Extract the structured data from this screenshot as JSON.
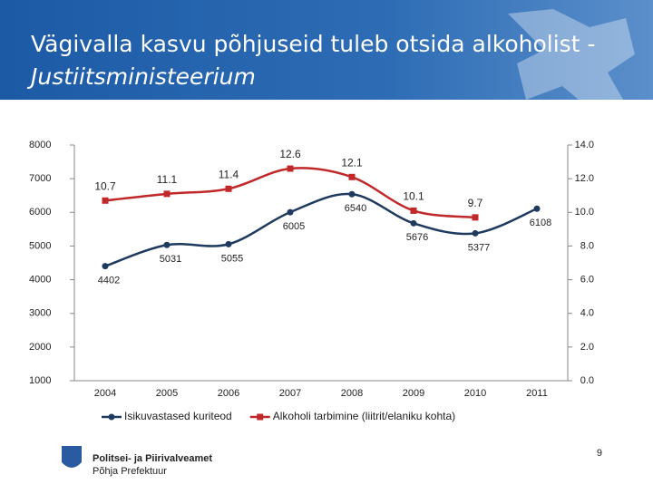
{
  "chart_data": {
    "type": "line",
    "title": "Vägivalla kasvu põhjuseid tuleb otsida alkoholist - ",
    "title_source": "Justiitsministeerium",
    "categories": [
      "2004",
      "2005",
      "2006",
      "2007",
      "2008",
      "2009",
      "2010",
      "2011"
    ],
    "series": [
      {
        "name": "Isikuvastased kuriteod",
        "color": "#1f3a5f",
        "values": [
          4402,
          5031,
          5055,
          6005,
          6540,
          5676,
          5377,
          6108
        ]
      },
      {
        "name": "Alkoholi tarbimine (liitrit/elaniku kohta)",
        "color": "#c0282a",
        "axis": "y2",
        "values": [
          10.7,
          11.1,
          11.4,
          12.6,
          12.1,
          10.1,
          9.7,
          null
        ]
      }
    ],
    "ylim": [
      1000,
      8000
    ],
    "yticks": [
      1000,
      2000,
      3000,
      4000,
      5000,
      6000,
      7000,
      8000
    ],
    "y2lim": [
      0,
      14
    ],
    "y2ticks": [
      {
        "value": 0,
        "label": "0.0"
      },
      {
        "value": 2,
        "label": "2.0"
      },
      {
        "value": 4,
        "label": "4.0"
      },
      {
        "value": 6,
        "label": "6.0"
      },
      {
        "value": 8,
        "label": "8.0"
      },
      {
        "value": 10,
        "label": "10.0"
      },
      {
        "value": 12,
        "label": "12.0"
      },
      {
        "value": 14,
        "label": "14.0"
      }
    ],
    "legend": "bottom",
    "organization": "Politsei- ja Piirivalveamet",
    "unit": "Põhja Prefektuur",
    "page_number": "9"
  }
}
